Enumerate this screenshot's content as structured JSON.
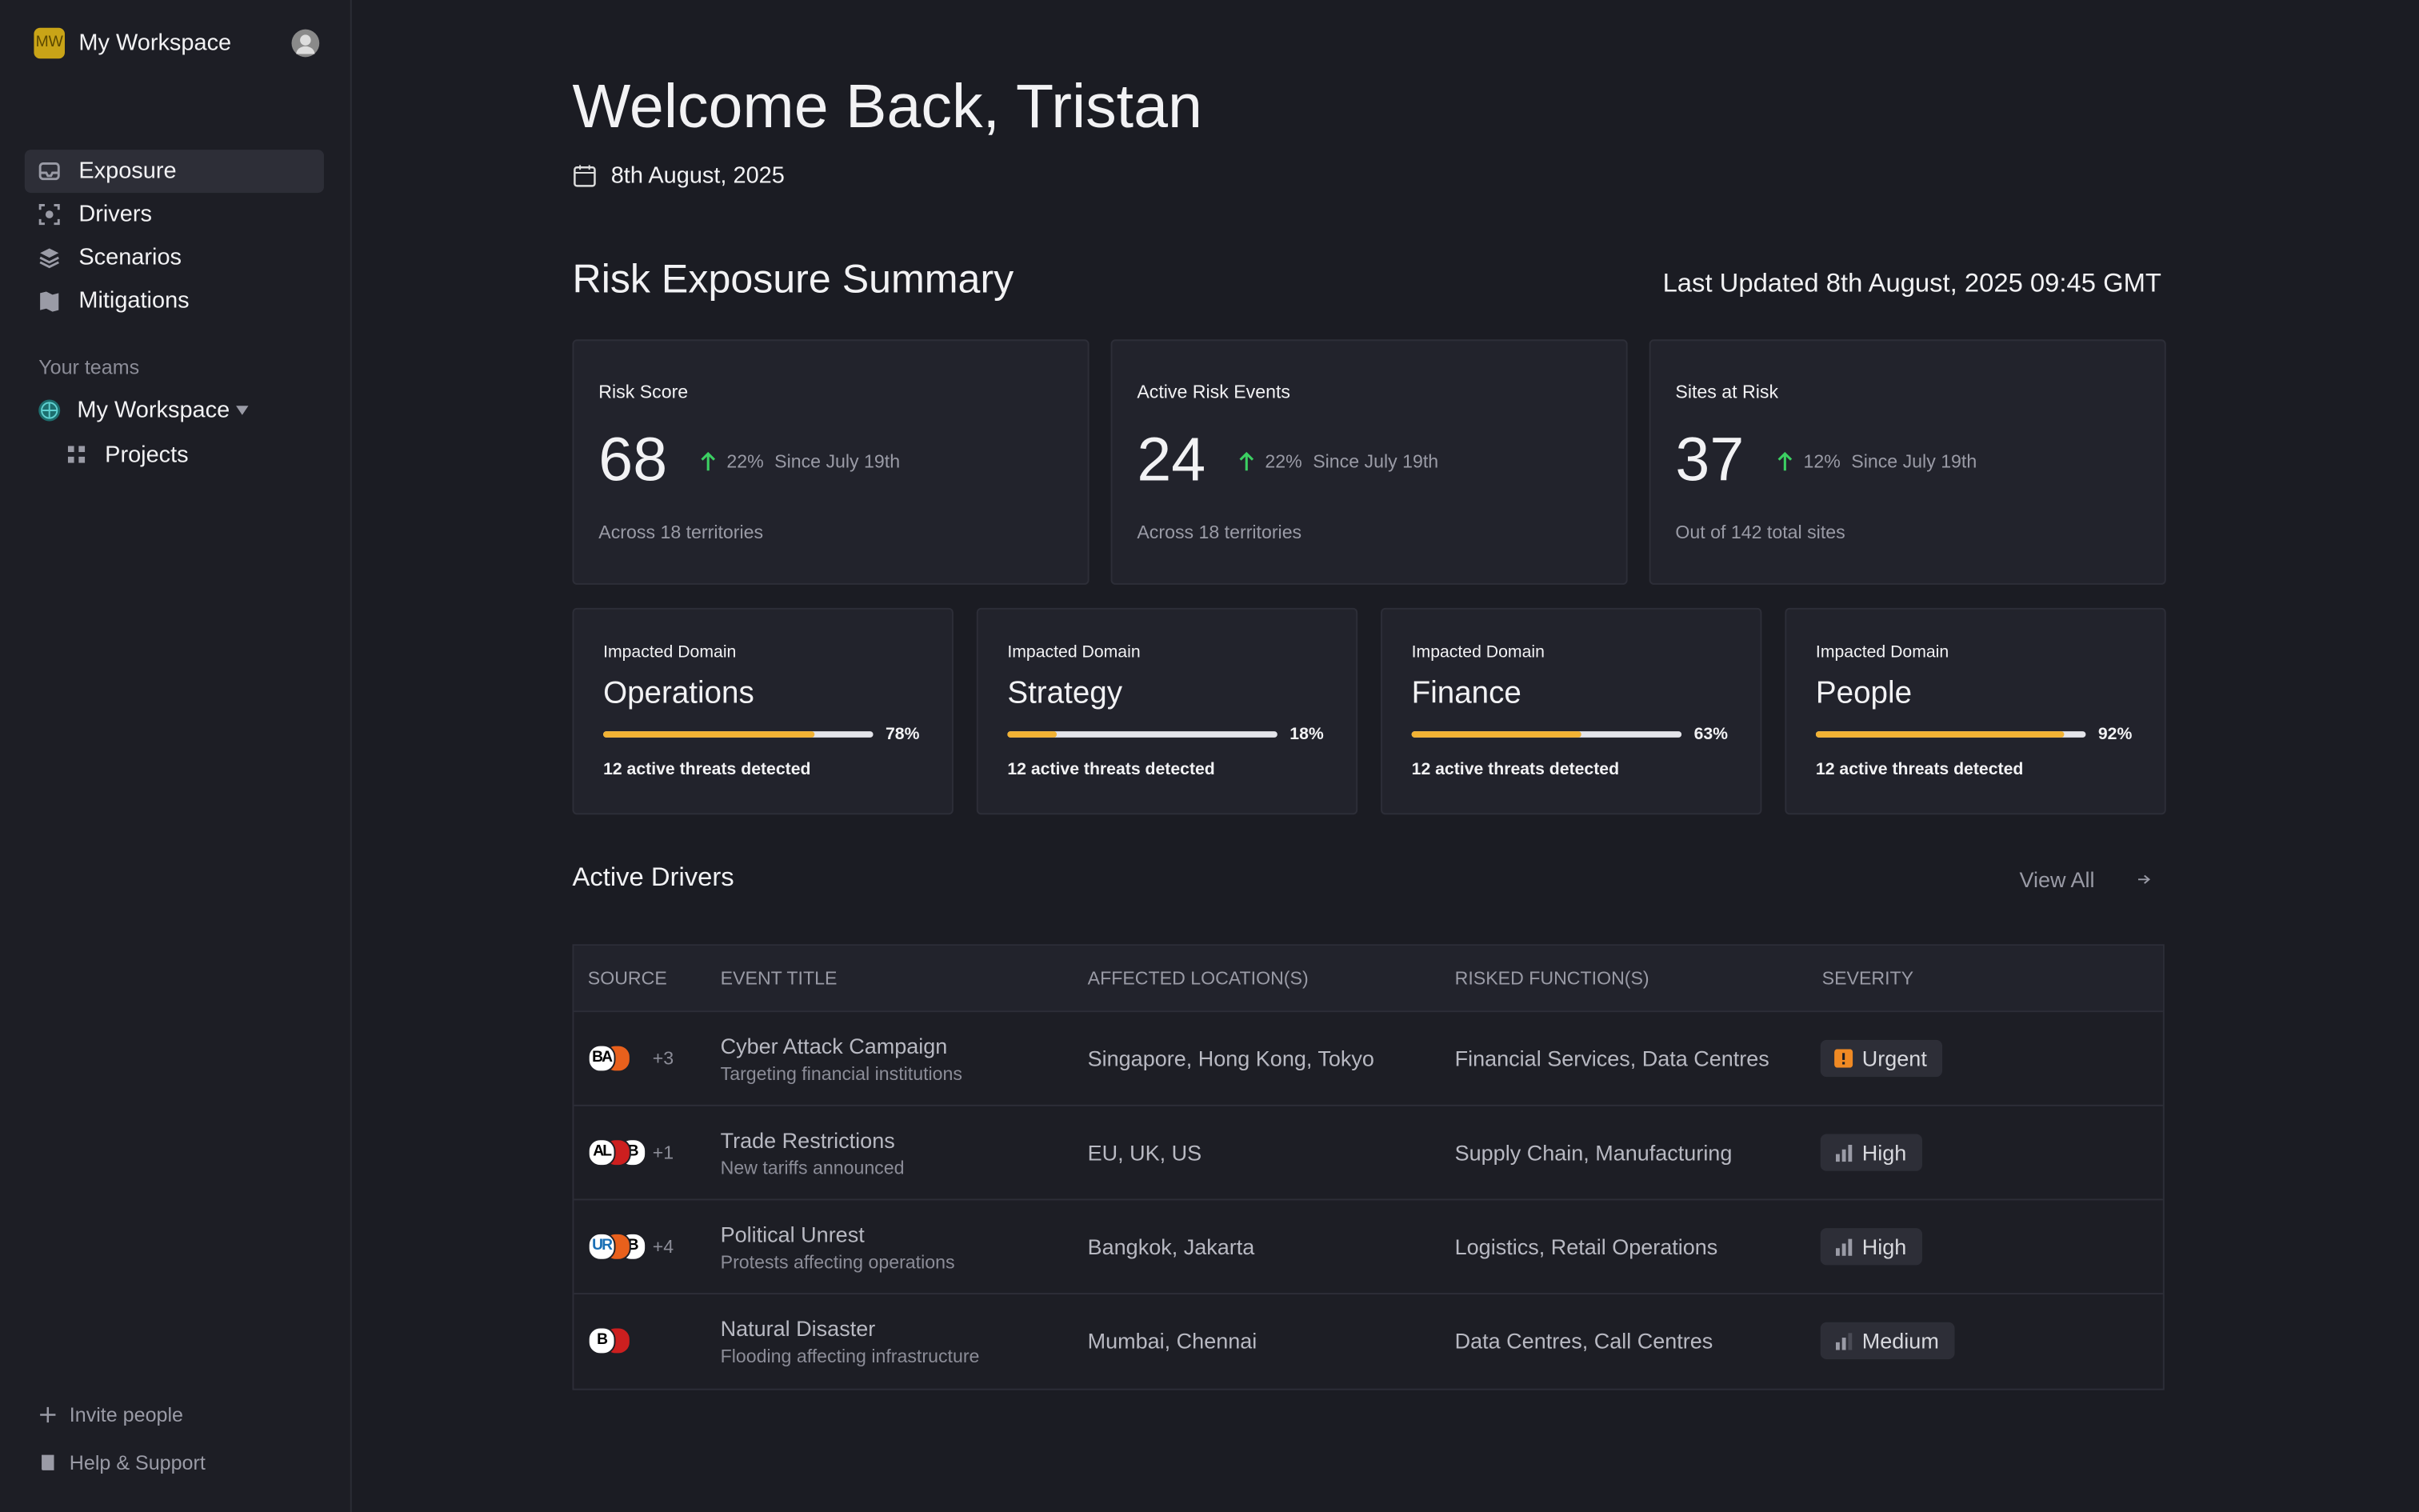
{
  "sidebar": {
    "workspace": "My Workspace",
    "workspace_initials": "MW",
    "nav": [
      "Exposure",
      "Drivers",
      "Scenarios",
      "Mitigations"
    ],
    "teams_heading": "Your teams",
    "team": "My Workspace",
    "team_items": [
      "Projects"
    ],
    "footer": [
      "Invite people",
      "Help & Support"
    ]
  },
  "header": {
    "title": "Welcome Back, Tristan",
    "date": "8th August, 2025"
  },
  "summary": {
    "title": "Risk Exposure Summary",
    "last_updated": "Last Updated 8th August, 2025 09:45 GMT",
    "cards": [
      {
        "label": "Risk Score",
        "value": "68",
        "change": "22%",
        "since": "Since July 19th",
        "note": "Across 18 territories"
      },
      {
        "label": "Active Risk Events",
        "value": "24",
        "change": "22%",
        "since": "Since July 19th",
        "note": "Across 18 territories"
      },
      {
        "label": "Sites at Risk",
        "value": "37",
        "change": "12%",
        "since": "Since July 19th",
        "note": "Out of 142 total sites"
      }
    ]
  },
  "domains": {
    "cards": [
      {
        "label": "Impacted Domain",
        "name": "Operations",
        "progress": {
          "value": 78,
          "label": "78%"
        },
        "note": "12 active threats detected"
      },
      {
        "label": "Impacted Domain",
        "name": "Strategy",
        "progress": {
          "value": 18,
          "label": "18%"
        },
        "note": "12 active threats detected"
      },
      {
        "label": "Impacted Domain",
        "name": "Finance",
        "progress": {
          "value": 63,
          "label": "63%"
        },
        "note": "12 active threats detected"
      },
      {
        "label": "Impacted Domain",
        "name": "People",
        "progress": {
          "value": 92,
          "label": "92%"
        },
        "note": "12 active threats detected"
      }
    ]
  },
  "drivers": {
    "title": "Active Drivers",
    "view_all": "View All",
    "columns": [
      "SOURCE",
      "EVENT TITLE",
      "AFFECTED LOCATION(S)",
      "RISKED FUNCTION(S)",
      "SEVERITY"
    ],
    "rows": [
      {
        "sources": [
          {
            "text": "BA",
            "bg": "#ffffff",
            "fg": "#000000"
          },
          {
            "bg": "#e8601c"
          }
        ],
        "extra": "+3",
        "title": "Cyber Attack Campaign",
        "subtitle": "Targeting financial institutions",
        "locations": "Singapore, Hong Kong, Tokyo",
        "functions": "Financial Services, Data Centres",
        "severity": "Urgent"
      },
      {
        "sources": [
          {
            "text": "AL",
            "bg": "#ffffff",
            "fg": "#000000"
          },
          {
            "bg": "#cc1f1f"
          },
          {
            "text": "B",
            "bg": "#ffffff",
            "fg": "#000000"
          }
        ],
        "extra": "+1",
        "title": "Trade Restrictions",
        "subtitle": "New tariffs announced",
        "locations": "EU, UK, US",
        "functions": "Supply Chain, Manufacturing",
        "severity": "High"
      },
      {
        "sources": [
          {
            "text": "UR",
            "bg": "#ffffff",
            "fg": "#1a6fb5"
          },
          {
            "bg": "#e8601c"
          },
          {
            "text": "B",
            "bg": "#ffffff",
            "fg": "#000000"
          }
        ],
        "extra": "+4",
        "title": "Political Unrest",
        "subtitle": "Protests affecting operations",
        "locations": "Bangkok, Jakarta",
        "functions": "Logistics, Retail Operations",
        "severity": "High"
      },
      {
        "sources": [
          {
            "text": "B",
            "bg": "#ffffff",
            "fg": "#000000"
          },
          {
            "bg": "#cc1f1f"
          }
        ],
        "title": "Natural Disaster",
        "subtitle": "Flooding affecting infrastructure",
        "locations": "Mumbai, Chennai",
        "functions": "Data Centres, Call Centres",
        "severity": "Medium"
      }
    ]
  }
}
